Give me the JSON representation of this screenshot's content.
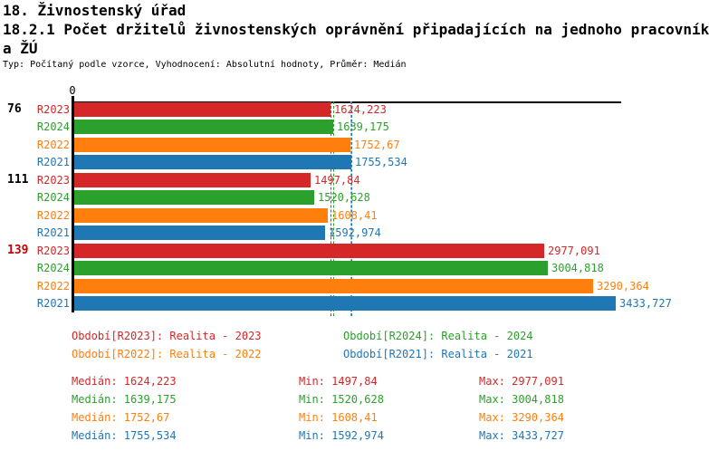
{
  "header": {
    "title": "18. Živnostenský úřad",
    "subtitle_line1": "18.2.1 Počet držitelů živnostenských oprávnění připadajících na jednoho pracovník",
    "subtitle_line2": "a ŽÚ",
    "meta": "Typ: Počítaný podle vzorce, Vyhodnocení: Absolutní hodnoty, Průměr: Medián"
  },
  "colors": {
    "r2023": "#d62728",
    "r2024": "#2ca02c",
    "r2022": "#ff7f0e",
    "r2021": "#1f77b4",
    "axis": "#000000",
    "highlighted_group_label": "#cc0000",
    "normal_group_label": "#000000"
  },
  "chart_data": {
    "type": "bar",
    "orientation": "horizontal",
    "axis_zero_label": "0",
    "series": [
      "R2023",
      "R2024",
      "R2022",
      "R2021"
    ],
    "series_colors": [
      "#d62728",
      "#2ca02c",
      "#ff7f0e",
      "#1f77b4"
    ],
    "groups": [
      {
        "label": "76",
        "highlighted": false,
        "values": [
          1624.223,
          1639.175,
          1752.67,
          1755.534
        ],
        "value_labels": [
          "1624,223",
          "1639,175",
          "1752,67",
          "1755,534"
        ]
      },
      {
        "label": "111",
        "highlighted": false,
        "values": [
          1497.84,
          1520.628,
          1608.41,
          1592.974
        ],
        "value_labels": [
          "1497,84",
          "1520,628",
          "1608,41",
          "1592,974"
        ]
      },
      {
        "label": "139",
        "highlighted": true,
        "values": [
          2977.091,
          3004.818,
          3290.364,
          3433.727
        ],
        "value_labels": [
          "2977,091",
          "3004,818",
          "3290,364",
          "3433,727"
        ]
      }
    ],
    "medians": [
      1624.223,
      1639.175,
      1752.67,
      1755.534
    ],
    "xlim": [
      0,
      3470
    ],
    "grid": false,
    "legend_position": "bottom"
  },
  "legend": {
    "items": [
      {
        "label": "Období[R2023]: Realita - 2023",
        "color": "#d62728"
      },
      {
        "label": "Období[R2024]: Realita - 2024",
        "color": "#2ca02c"
      },
      {
        "label": "Období[R2022]: Realita - 2022",
        "color": "#ff7f0e"
      },
      {
        "label": "Období[R2021]: Realita - 2021",
        "color": "#1f77b4"
      }
    ]
  },
  "stats": {
    "rows": [
      {
        "median": "Medián: 1624,223",
        "min": "Min: 1497,84",
        "max": "Max: 2977,091",
        "color": "#d62728"
      },
      {
        "median": "Medián: 1639,175",
        "min": "Min: 1520,628",
        "max": "Max: 3004,818",
        "color": "#2ca02c"
      },
      {
        "median": "Medián: 1752,67",
        "min": "Min: 1608,41",
        "max": "Max: 3290,364",
        "color": "#ff7f0e"
      },
      {
        "median": "Medián: 1755,534",
        "min": "Min: 1592,974",
        "max": "Max: 3433,727",
        "color": "#1f77b4"
      }
    ]
  }
}
